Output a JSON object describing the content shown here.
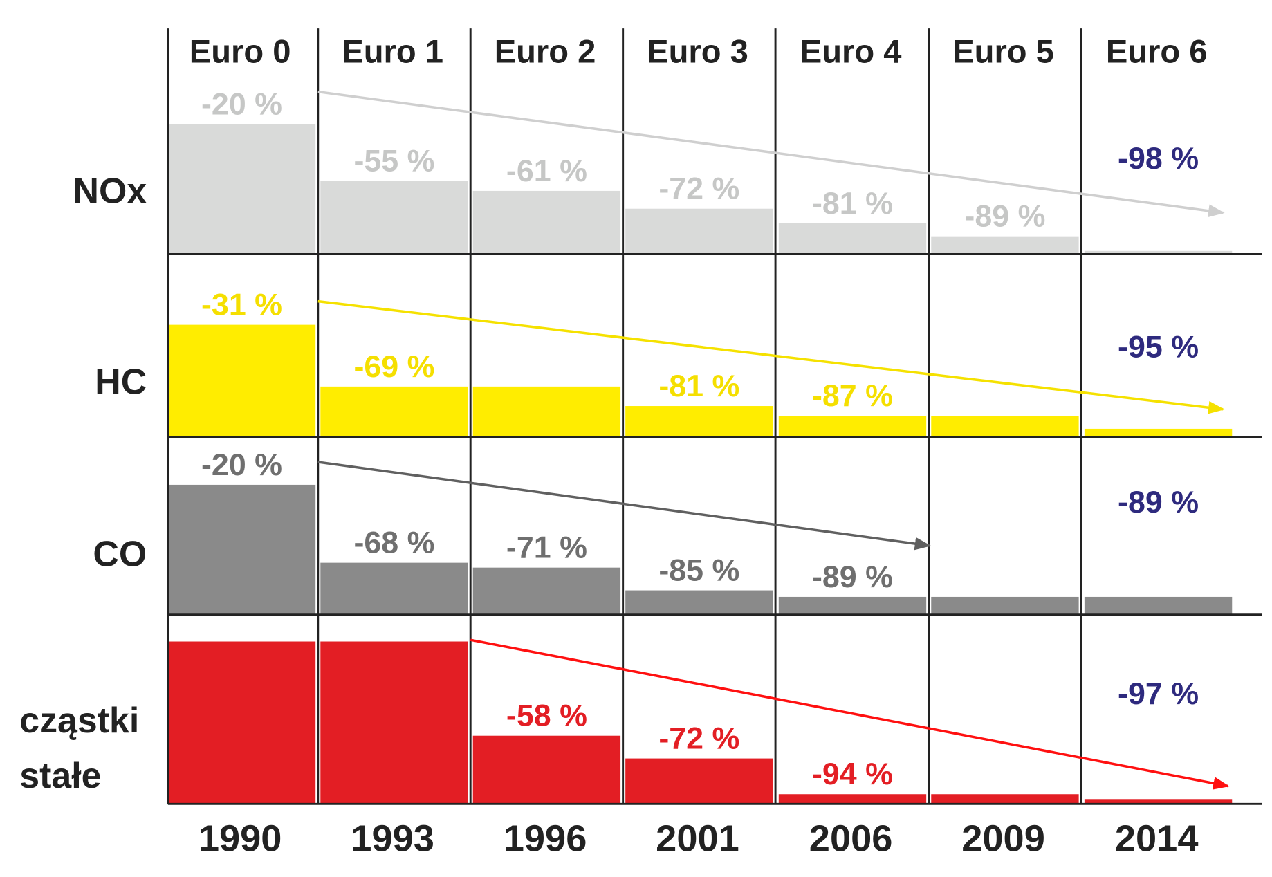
{
  "chart_data": {
    "type": "bar",
    "categories": [
      "Euro 0",
      "Euro 1",
      "Euro 2",
      "Euro 3",
      "Euro 4",
      "Euro 5",
      "Euro 6"
    ],
    "years": [
      "1990",
      "1993",
      "1996",
      "2001",
      "2006",
      "2009",
      "2014"
    ],
    "value_unit": "% of reference level",
    "grid": true,
    "series": [
      {
        "name": "NOx",
        "color": "#d9dad9",
        "label_color": "#c6c7c6",
        "arrow_color": "#cfcfcf",
        "values": [
          80,
          45,
          39,
          28,
          19,
          11,
          2
        ],
        "labels": [
          "-20 %",
          "-55 %",
          "-61 %",
          "-72 %",
          "-81 %",
          "-89 %",
          "-98 %"
        ]
      },
      {
        "name": "HC",
        "color": "#ffed00",
        "label_color": "#f5df00",
        "arrow_color": "#f5e100",
        "values": [
          69,
          31,
          31,
          19,
          13,
          13,
          5
        ],
        "labels": [
          "-31 %",
          "-69 %",
          null,
          "-81 %",
          "-87 %",
          null,
          "-95 %"
        ]
      },
      {
        "name": "CO",
        "color": "#8a8a8a",
        "label_color": "#6f6f6f",
        "arrow_color": "#606060",
        "values": [
          80,
          32,
          29,
          15,
          11,
          11,
          11
        ],
        "labels": [
          "-20 %",
          "-68 %",
          "-71 %",
          "-85 %",
          "-89 %",
          null,
          "-89 %"
        ]
      },
      {
        "name": "cząstki stałe",
        "name_lines": [
          "cząstki",
          "stałe"
        ],
        "color": "#e31e24",
        "label_color": "#e31e24",
        "arrow_color": "#ff1010",
        "values": [
          100,
          100,
          42,
          28,
          6,
          6,
          3
        ],
        "labels": [
          null,
          null,
          "-58 %",
          "-72 %",
          "-94 %",
          null,
          "-97 %"
        ]
      }
    ],
    "final_label_color": "#2e2a7e"
  }
}
